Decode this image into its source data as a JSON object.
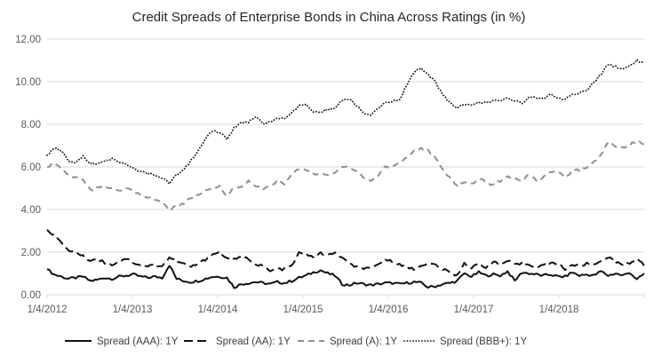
{
  "page": {
    "background": "#ffffff",
    "text_color": "#595959",
    "title_color": "#262626",
    "grid_color": "#d9d9d9"
  },
  "chart_data": {
    "type": "line",
    "title": "Credit Spreads of Enterprise Bonds in China Across Ratings (in %)",
    "xlabel": "",
    "ylabel": "",
    "ylim": [
      0,
      12
    ],
    "grid": true,
    "legend_position": "bottom",
    "x_unit": "monthly, Jan 2012 - Dec 2018",
    "y_tick_labels": [
      "12.00",
      "10.00",
      "8.00",
      "6.00",
      "4.00",
      "2.00",
      "0.00"
    ],
    "y_tick_values": [
      12,
      10,
      8,
      6,
      4,
      2,
      0
    ],
    "x_tick_labels": [
      "1/4/2012",
      "1/4/2013",
      "1/4/2014",
      "1/4/2015",
      "1/4/2016",
      "1/4/2017",
      "1/4/2018"
    ],
    "series": [
      {
        "name": "Spread (AAA): 1Y",
        "color": "#111111",
        "dash": "solid",
        "width": 2,
        "values": [
          1.2,
          0.95,
          0.85,
          0.75,
          0.8,
          0.85,
          0.65,
          0.7,
          0.8,
          0.75,
          0.85,
          0.9,
          0.95,
          0.85,
          0.8,
          0.85,
          0.8,
          1.4,
          0.75,
          0.65,
          0.6,
          0.65,
          0.75,
          0.85,
          0.85,
          0.8,
          0.35,
          0.5,
          0.55,
          0.6,
          0.55,
          0.5,
          0.6,
          0.55,
          0.65,
          0.8,
          0.9,
          1.05,
          1.15,
          1.0,
          0.9,
          0.5,
          0.45,
          0.55,
          0.5,
          0.45,
          0.5,
          0.55,
          0.55,
          0.5,
          0.55,
          0.6,
          0.55,
          0.35,
          0.4,
          0.5,
          0.55,
          0.65,
          1.0,
          0.85,
          1.05,
          0.9,
          0.95,
          0.9,
          1.1,
          0.65,
          1.05,
          1.0,
          0.95,
          0.9,
          0.95,
          0.85,
          0.85,
          1.05,
          0.9,
          0.95,
          0.9,
          1.1,
          0.9,
          1.0,
          0.9,
          1.05,
          0.7,
          1.0
        ]
      },
      {
        "name": "Spread (AA): 1Y",
        "color": "#111111",
        "dash": "long-dash",
        "width": 2,
        "values": [
          3.05,
          2.8,
          2.4,
          2.1,
          2.0,
          1.8,
          1.6,
          1.7,
          1.5,
          1.4,
          1.6,
          1.7,
          1.5,
          1.4,
          1.35,
          1.4,
          1.35,
          1.75,
          1.55,
          1.45,
          1.3,
          1.45,
          1.65,
          1.9,
          2.0,
          1.7,
          1.65,
          1.75,
          1.7,
          1.4,
          1.35,
          1.1,
          1.2,
          1.2,
          1.35,
          1.95,
          1.9,
          1.8,
          1.95,
          1.85,
          1.95,
          1.75,
          1.45,
          1.3,
          1.25,
          1.2,
          1.4,
          1.65,
          1.55,
          1.45,
          1.3,
          1.2,
          1.4,
          1.45,
          1.4,
          1.2,
          1.05,
          0.9,
          1.5,
          1.25,
          1.45,
          1.3,
          1.55,
          1.4,
          1.6,
          1.4,
          1.45,
          1.4,
          1.3,
          1.4,
          1.45,
          1.5,
          1.2,
          1.4,
          1.35,
          1.45,
          1.4,
          1.6,
          1.8,
          1.5,
          1.45,
          1.5,
          1.7,
          1.35
        ]
      },
      {
        "name": "Spread (A): 1Y",
        "color": "#8f8f8f",
        "dash": "dash",
        "width": 2,
        "values": [
          6.0,
          6.2,
          5.9,
          5.6,
          5.5,
          5.4,
          4.9,
          5.0,
          5.1,
          5.0,
          4.9,
          5.0,
          4.85,
          4.7,
          4.6,
          4.45,
          4.3,
          4.0,
          4.15,
          4.3,
          4.55,
          4.7,
          4.85,
          5.0,
          5.1,
          4.65,
          5.0,
          5.05,
          5.35,
          5.1,
          4.95,
          5.1,
          5.35,
          5.2,
          5.65,
          5.9,
          5.9,
          5.7,
          5.65,
          5.6,
          5.7,
          6.05,
          6.0,
          5.8,
          5.5,
          5.35,
          5.6,
          6.0,
          6.05,
          6.2,
          6.45,
          6.75,
          6.85,
          6.75,
          6.4,
          5.85,
          5.5,
          5.15,
          5.3,
          5.2,
          5.45,
          5.3,
          5.15,
          5.35,
          5.55,
          5.5,
          5.35,
          5.65,
          5.4,
          5.5,
          5.8,
          5.75,
          5.5,
          5.8,
          5.85,
          6.0,
          6.2,
          6.55,
          7.2,
          6.95,
          6.9,
          7.05,
          7.25,
          7.05
        ]
      },
      {
        "name": "Spread (BBB+): 1Y",
        "color": "#111111",
        "dash": "dot",
        "width": 1.8,
        "values": [
          6.55,
          6.9,
          6.7,
          6.3,
          6.2,
          6.5,
          6.1,
          6.2,
          6.3,
          6.4,
          6.2,
          6.1,
          5.9,
          5.8,
          5.7,
          5.6,
          5.5,
          5.25,
          5.6,
          5.9,
          6.3,
          6.8,
          7.3,
          7.7,
          7.6,
          7.3,
          7.85,
          8.1,
          8.1,
          8.35,
          8.0,
          8.1,
          8.3,
          8.3,
          8.55,
          8.85,
          8.9,
          8.6,
          8.55,
          8.7,
          8.75,
          9.1,
          9.2,
          8.9,
          8.5,
          8.4,
          8.7,
          9.05,
          9.05,
          9.2,
          9.8,
          10.45,
          10.6,
          10.35,
          9.95,
          9.4,
          9.0,
          8.8,
          8.95,
          8.9,
          9.0,
          9.05,
          9.1,
          9.05,
          9.25,
          9.1,
          9.0,
          9.3,
          9.25,
          9.2,
          9.4,
          9.2,
          9.2,
          9.4,
          9.45,
          9.6,
          9.95,
          10.35,
          10.85,
          10.7,
          10.6,
          10.75,
          11.0,
          10.85
        ]
      }
    ]
  }
}
